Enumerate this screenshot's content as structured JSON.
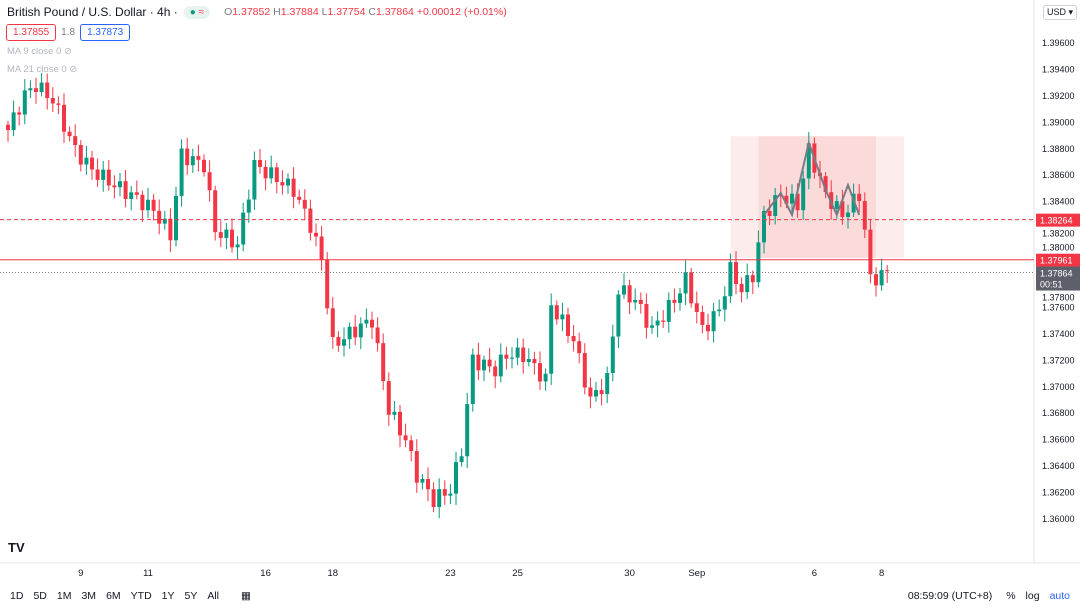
{
  "header": {
    "title": "British Pound / U.S. Dollar · 4h ·",
    "status_dot": "●",
    "status_sym": "≈",
    "ohlc": {
      "o_label": "O",
      "o": "1.37852",
      "h_label": "H",
      "h": "1.37884",
      "l_label": "L",
      "l": "1.37754",
      "c_label": "C",
      "c": "1.37864",
      "change": "+0.00012 (+0.01%)"
    },
    "bid": "1.37855",
    "spread": "1.8",
    "ask": "1.37873"
  },
  "indicators": [
    {
      "label": "MA 9 close 0"
    },
    {
      "label": "MA 21 close 0"
    }
  ],
  "currency": "USD ▾",
  "bottom": {
    "ranges": [
      "1D",
      "5D",
      "1M",
      "3M",
      "6M",
      "YTD",
      "1Y",
      "5Y",
      "All"
    ],
    "time": "08:59:09 (UTC+8)",
    "pct": "%",
    "log": "log",
    "auto": "auto"
  },
  "colors": {
    "up": "#089981",
    "down": "#f23645",
    "accent": "#2962ff"
  },
  "chart_data": {
    "type": "candlestick",
    "title": "British Pound / U.S. Dollar 4h",
    "ylim": [
      1.3585,
      1.3985
    ],
    "yticks": [
      "1.39600",
      "1.39400",
      "1.39200",
      "1.39000",
      "1.38800",
      "1.38600",
      "1.38400",
      "1.38200",
      "1.38000",
      "1.37800",
      "1.37600",
      "1.37400",
      "1.37200",
      "1.37000",
      "1.36800",
      "1.36600",
      "1.36400",
      "1.36200",
      "1.36000"
    ],
    "xticks": [
      {
        "label": "9",
        "i": 13
      },
      {
        "label": "11",
        "i": 25
      },
      {
        "label": "16",
        "i": 46
      },
      {
        "label": "18",
        "i": 58
      },
      {
        "label": "23",
        "i": 79
      },
      {
        "label": "25",
        "i": 91
      },
      {
        "label": "30",
        "i": 111
      },
      {
        "label": "Sep",
        "i": 123
      },
      {
        "label": "6",
        "i": 144
      },
      {
        "label": "8",
        "i": 156
      }
    ],
    "candle_count": 158,
    "anchor_closes": [
      [
        0,
        1.38942
      ],
      [
        3,
        1.39207
      ],
      [
        5,
        1.39282
      ],
      [
        8,
        1.39169
      ],
      [
        12,
        1.38791
      ],
      [
        15,
        1.3864
      ],
      [
        19,
        1.38526
      ],
      [
        22,
        1.38451
      ],
      [
        26,
        1.38337
      ],
      [
        29,
        1.38148
      ],
      [
        31,
        1.38753
      ],
      [
        35,
        1.38678
      ],
      [
        37,
        1.38186
      ],
      [
        41,
        1.38073
      ],
      [
        44,
        1.38678
      ],
      [
        47,
        1.38602
      ],
      [
        51,
        1.38489
      ],
      [
        54,
        1.38224
      ],
      [
        56,
        1.3796
      ],
      [
        58,
        1.37317
      ],
      [
        62,
        1.3743
      ],
      [
        65,
        1.37506
      ],
      [
        68,
        1.36826
      ],
      [
        71,
        1.36599
      ],
      [
        73,
        1.36334
      ],
      [
        76,
        1.36145
      ],
      [
        79,
        1.36221
      ],
      [
        81,
        1.36523
      ],
      [
        83,
        1.37203
      ],
      [
        87,
        1.37128
      ],
      [
        89,
        1.37241
      ],
      [
        92,
        1.37241
      ],
      [
        96,
        1.37052
      ],
      [
        97,
        1.37619
      ],
      [
        101,
        1.37355
      ],
      [
        104,
        1.36901
      ],
      [
        107,
        1.37052
      ],
      [
        109,
        1.37733
      ],
      [
        112,
        1.37657
      ],
      [
        115,
        1.3743
      ],
      [
        119,
        1.37657
      ],
      [
        121,
        1.37808
      ],
      [
        124,
        1.3743
      ],
      [
        127,
        1.3758
      ],
      [
        129,
        1.37884
      ],
      [
        131,
        1.37733
      ],
      [
        133,
        1.37846
      ],
      [
        135,
        1.383
      ],
      [
        138,
        1.38451
      ],
      [
        141,
        1.38375
      ],
      [
        143,
        1.38791
      ],
      [
        146,
        1.38451
      ],
      [
        149,
        1.383
      ],
      [
        152,
        1.38451
      ],
      [
        153,
        1.38186
      ],
      [
        154,
        1.37808
      ],
      [
        157,
        1.37864
      ]
    ],
    "lines": [
      {
        "price": 1.38264,
        "label": "1.38264",
        "style": "dashed"
      },
      {
        "price": 1.37961,
        "label": "1.37961",
        "style": "solid"
      },
      {
        "price": 1.37864,
        "label": "1.37864",
        "countdown": "00:51",
        "style": "dotted"
      }
    ],
    "pattern": {
      "zone_top": 1.38895,
      "zone_bottom": 1.37975,
      "start_i": 129,
      "end_i": 160,
      "core_start_i": 134,
      "core_end_i": 155,
      "path": [
        [
          135,
          1.383
        ],
        [
          138,
          1.38466
        ],
        [
          140,
          1.383
        ],
        [
          143,
          1.38845
        ],
        [
          146,
          1.38489
        ],
        [
          148,
          1.383
        ],
        [
          150,
          1.38526
        ],
        [
          152,
          1.383
        ]
      ]
    }
  }
}
